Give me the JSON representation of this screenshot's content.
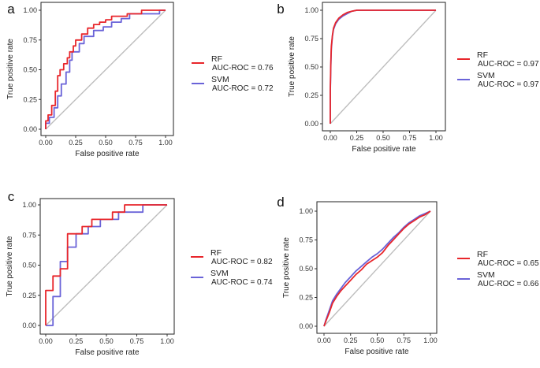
{
  "colors": {
    "rf": "#e8262b",
    "svm": "#6a63d8",
    "diagonal": "#bdbdbd",
    "axis": "#333333",
    "frame": "#222222"
  },
  "chart_data": [
    {
      "panel_label": "a",
      "type": "line",
      "xlabel": "False positive rate",
      "ylabel": "True positive rate",
      "xlim": [
        0,
        1
      ],
      "ylim": [
        0,
        1
      ],
      "xticks": [
        "0.00",
        "0.25",
        "0.50",
        "0.75",
        "1.00"
      ],
      "yticks": [
        "0.00",
        "0.25",
        "0.50",
        "0.75",
        "1.00"
      ],
      "series": [
        {
          "name": "RF",
          "auc_label": "AUC-ROC = 0.76",
          "x": [
            0,
            0,
            0.02,
            0.02,
            0.05,
            0.05,
            0.08,
            0.08,
            0.1,
            0.1,
            0.12,
            0.12,
            0.15,
            0.15,
            0.18,
            0.18,
            0.2,
            0.2,
            0.23,
            0.23,
            0.25,
            0.25,
            0.3,
            0.3,
            0.35,
            0.35,
            0.4,
            0.4,
            0.45,
            0.45,
            0.5,
            0.5,
            0.55,
            0.55,
            0.68,
            0.68,
            0.8,
            0.8,
            1.0
          ],
          "y": [
            0,
            0.07,
            0.07,
            0.12,
            0.12,
            0.2,
            0.2,
            0.32,
            0.32,
            0.45,
            0.45,
            0.5,
            0.5,
            0.55,
            0.55,
            0.6,
            0.6,
            0.65,
            0.65,
            0.7,
            0.7,
            0.75,
            0.75,
            0.8,
            0.8,
            0.85,
            0.85,
            0.88,
            0.88,
            0.9,
            0.9,
            0.92,
            0.92,
            0.95,
            0.95,
            0.97,
            0.97,
            1.0,
            1.0
          ]
        },
        {
          "name": "SVM",
          "auc_label": "AUC-ROC = 0.72",
          "x": [
            0,
            0,
            0.03,
            0.03,
            0.07,
            0.07,
            0.1,
            0.1,
            0.13,
            0.13,
            0.17,
            0.17,
            0.2,
            0.2,
            0.22,
            0.22,
            0.28,
            0.28,
            0.32,
            0.32,
            0.4,
            0.4,
            0.48,
            0.48,
            0.55,
            0.55,
            0.63,
            0.63,
            0.7,
            0.7,
            0.95,
            0.95,
            1.0
          ],
          "y": [
            0,
            0.05,
            0.05,
            0.1,
            0.1,
            0.18,
            0.18,
            0.28,
            0.28,
            0.38,
            0.38,
            0.48,
            0.48,
            0.58,
            0.58,
            0.65,
            0.65,
            0.72,
            0.72,
            0.78,
            0.78,
            0.83,
            0.83,
            0.86,
            0.86,
            0.9,
            0.9,
            0.93,
            0.93,
            0.97,
            0.97,
            1.0,
            1.0
          ]
        }
      ]
    },
    {
      "panel_label": "b",
      "type": "line",
      "xlabel": "False positive rate",
      "ylabel": "True positive rate",
      "xlim": [
        0,
        1
      ],
      "ylim": [
        0,
        1
      ],
      "xticks": [
        "0.00",
        "0.25",
        "0.50",
        "0.75",
        "1.00"
      ],
      "yticks": [
        "0.00",
        "0.25",
        "0.50",
        "0.75",
        "1.00"
      ],
      "series": [
        {
          "name": "RF",
          "auc_label": "AUC-ROC = 0.97",
          "x": [
            0,
            0,
            0.005,
            0.01,
            0.02,
            0.03,
            0.05,
            0.08,
            0.12,
            0.16,
            0.2,
            0.25,
            0.3,
            1.0
          ],
          "y": [
            0,
            0.3,
            0.55,
            0.68,
            0.78,
            0.84,
            0.89,
            0.93,
            0.96,
            0.98,
            0.99,
            1.0,
            1.0,
            1.0
          ]
        },
        {
          "name": "SVM",
          "auc_label": "AUC-ROC = 0.97",
          "x": [
            0,
            0,
            0.005,
            0.01,
            0.02,
            0.03,
            0.05,
            0.08,
            0.12,
            0.16,
            0.2,
            0.25,
            0.3,
            1.0
          ],
          "y": [
            0,
            0.28,
            0.52,
            0.66,
            0.77,
            0.83,
            0.88,
            0.92,
            0.95,
            0.97,
            0.99,
            1.0,
            1.0,
            1.0
          ]
        }
      ]
    },
    {
      "panel_label": "c",
      "type": "line",
      "xlabel": "False positive rate",
      "ylabel": "True positive rate",
      "xlim": [
        0,
        1
      ],
      "ylim": [
        0,
        1
      ],
      "xticks": [
        "0.00",
        "0.25",
        "0.50",
        "0.75",
        "1.00"
      ],
      "yticks": [
        "0.00",
        "0.25",
        "0.50",
        "0.75",
        "1.00"
      ],
      "series": [
        {
          "name": "RF",
          "auc_label": "AUC-ROC = 0.82",
          "x": [
            0,
            0,
            0.06,
            0.06,
            0.12,
            0.12,
            0.18,
            0.18,
            0.3,
            0.3,
            0.38,
            0.38,
            0.55,
            0.55,
            0.65,
            0.65,
            1.0
          ],
          "y": [
            0,
            0.29,
            0.29,
            0.41,
            0.41,
            0.47,
            0.47,
            0.76,
            0.76,
            0.82,
            0.82,
            0.88,
            0.88,
            0.94,
            0.94,
            1.0,
            1.0
          ]
        },
        {
          "name": "SVM",
          "auc_label": "AUC-ROC = 0.74",
          "x": [
            0,
            0.06,
            0.06,
            0.12,
            0.12,
            0.18,
            0.18,
            0.25,
            0.25,
            0.35,
            0.35,
            0.45,
            0.45,
            0.6,
            0.6,
            0.8,
            0.8,
            1.0
          ],
          "y": [
            0,
            0,
            0.24,
            0.24,
            0.53,
            0.53,
            0.65,
            0.65,
            0.76,
            0.76,
            0.82,
            0.82,
            0.88,
            0.88,
            0.94,
            0.94,
            1.0,
            1.0
          ]
        }
      ]
    },
    {
      "panel_label": "d",
      "type": "line",
      "xlabel": "False positive rate",
      "ylabel": "True positive rate",
      "xlim": [
        0,
        1
      ],
      "ylim": [
        0,
        1
      ],
      "xticks": [
        "0.00",
        "0.25",
        "0.50",
        "0.75",
        "1.00"
      ],
      "yticks": [
        "0.00",
        "0.25",
        "0.50",
        "0.75",
        "1.00"
      ],
      "series": [
        {
          "name": "RF",
          "auc_label": "AUC-ROC = 0.65",
          "x": [
            0,
            0.02,
            0.05,
            0.08,
            0.12,
            0.16,
            0.2,
            0.25,
            0.3,
            0.35,
            0.4,
            0.45,
            0.5,
            0.55,
            0.6,
            0.65,
            0.7,
            0.75,
            0.8,
            0.85,
            0.9,
            0.95,
            1.0
          ],
          "y": [
            0,
            0.05,
            0.12,
            0.2,
            0.26,
            0.31,
            0.35,
            0.4,
            0.45,
            0.49,
            0.54,
            0.57,
            0.6,
            0.64,
            0.7,
            0.75,
            0.8,
            0.85,
            0.89,
            0.92,
            0.95,
            0.97,
            1.0
          ]
        },
        {
          "name": "SVM",
          "auc_label": "AUC-ROC = 0.66",
          "x": [
            0,
            0.02,
            0.05,
            0.08,
            0.12,
            0.16,
            0.2,
            0.25,
            0.3,
            0.35,
            0.4,
            0.45,
            0.5,
            0.55,
            0.6,
            0.65,
            0.7,
            0.75,
            0.8,
            0.85,
            0.9,
            0.95,
            1.0
          ],
          "y": [
            0,
            0.06,
            0.14,
            0.22,
            0.28,
            0.33,
            0.38,
            0.43,
            0.48,
            0.52,
            0.56,
            0.6,
            0.63,
            0.67,
            0.72,
            0.77,
            0.81,
            0.86,
            0.9,
            0.93,
            0.96,
            0.98,
            1.0
          ]
        }
      ]
    }
  ]
}
